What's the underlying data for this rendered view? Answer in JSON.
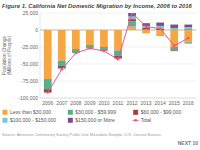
{
  "chart_data": {
    "type": "bar",
    "stacked": true,
    "title": "Figure 1. California Net Domestic Migration by Income, 2006 to 2016",
    "ylabel": "Population Change\n(Millions of People)",
    "categories": [
      "2006",
      "2007",
      "2008",
      "2009",
      "2010",
      "2011",
      "2012",
      "2013",
      "2014",
      "2015",
      "2016"
    ],
    "series": [
      {
        "name": "Less than $30,000",
        "type": "bar",
        "color": "#F5A744",
        "values": [
          -72000,
          -45000,
          -28000,
          -22000,
          -25000,
          -30000,
          5000,
          -5000,
          -8000,
          -25000,
          -18000
        ]
      },
      {
        "name": "$30,000 - $59,999",
        "type": "bar",
        "color": "#5BAD8F",
        "values": [
          -15000,
          -8000,
          -6000,
          -4000,
          -5000,
          -8000,
          8000,
          1000,
          -1000,
          -5000,
          -2000
        ]
      },
      {
        "name": "$60,000 - $99,000",
        "type": "bar",
        "color": "#A84040",
        "values": [
          -5000,
          -3000,
          0,
          -1000,
          -1000,
          -4000,
          3000,
          2000,
          2000,
          -1000,
          1000
        ]
      },
      {
        "name": "$100,000 - $150,000",
        "type": "bar",
        "color": "#7BC8D4",
        "values": [
          0,
          -2000,
          0,
          0,
          0,
          -1000,
          4000,
          3000,
          4000,
          3000,
          3000
        ]
      },
      {
        "name": "$150,000 or More",
        "type": "bar",
        "color": "#7B4F8C",
        "values": [
          0,
          0,
          0,
          0,
          0,
          0,
          5000,
          4000,
          5000,
          5000,
          4000
        ]
      },
      {
        "name": "Total",
        "type": "line",
        "color": "#E8578A",
        "marker": "circle",
        "values": [
          -92000,
          -58000,
          -34000,
          -27000,
          -31000,
          -43000,
          25000,
          5000,
          2000,
          -23000,
          -12000
        ]
      }
    ],
    "ylim": [
      -100000,
      25000
    ],
    "yticks": [
      {
        "value": -100000,
        "label": "-100,000"
      },
      {
        "value": -75000,
        "label": "-75,000"
      },
      {
        "value": -50000,
        "label": "-50,000"
      },
      {
        "value": -25000,
        "label": "-25,000"
      },
      0,
      {
        "value": 25000,
        "label": "25,000"
      }
    ],
    "grid": true,
    "legend": "bottom",
    "annotations": [
      "Source: American Community Survey Public Use Microdata Sample, U.S. Census Bureau",
      "NEXT 10"
    ]
  }
}
